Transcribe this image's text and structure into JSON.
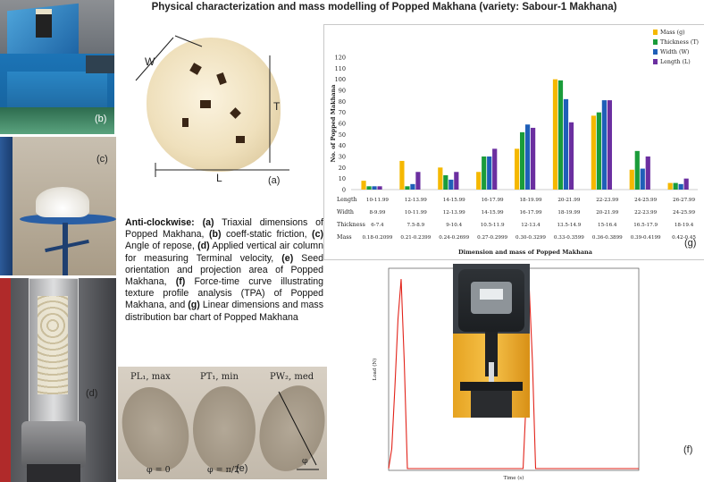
{
  "figure": {
    "title": "Physical characterization and mass modelling of Popped Makhana (variety: Sabour-1 Makhana)",
    "panel_labels": {
      "a": "(a)",
      "b": "(b)",
      "c": "(c)",
      "d": "(d)",
      "e": "(e)",
      "f": "(f)",
      "g": "(g)"
    },
    "panel_a_dims": {
      "w": "W",
      "t": "T",
      "l": "L"
    },
    "panel_e_labels": {
      "pl": "PL₁, max",
      "pt": "PT₁, min",
      "pw": "PW₂, med",
      "phi0": "φ = 0",
      "phi_half": "φ = π/2",
      "phi": "φ"
    },
    "caption": {
      "lead": "Anti-clockwise:",
      "parts": [
        {
          "tag": "(a)",
          "text": " Triaxial dimensions of Popped Makhana, "
        },
        {
          "tag": "(b)",
          "text": " coeff-static friction, "
        },
        {
          "tag": "(c)",
          "text": " Angle of repose, "
        },
        {
          "tag": "(d)",
          "text": " Applied vertical air column for measuring Terminal velocity, "
        },
        {
          "tag": "(e)",
          "text": " Seed orientation and projection area of Popped Makhana, "
        },
        {
          "tag": "(f)",
          "text": " Force-time curve illustrating texture profile analysis (TPA) of Popped Makhana, and "
        },
        {
          "tag": "(g)",
          "text": " Linear dimensions and mass distribution bar chart of Popped Makhana"
        }
      ]
    }
  },
  "chart_data": [
    {
      "type": "bar",
      "ylabel": "No. of Popped Makhana",
      "xlabel": "Dimension and mass of Popped Makhana",
      "ylim": [
        0,
        120
      ],
      "yticks": [
        0,
        10,
        20,
        30,
        40,
        50,
        60,
        70,
        80,
        90,
        100,
        110,
        120
      ],
      "legend_position": "top-right",
      "colors": {
        "mass": "#f5b800",
        "thickness": "#1a9c3a",
        "width": "#1f5fb8",
        "length": "#6b2fa0"
      },
      "series": [
        {
          "name": "Mass (g)",
          "key": "mass",
          "values": [
            8,
            26,
            20,
            16,
            37,
            100,
            67,
            18,
            6
          ]
        },
        {
          "name": "Thickness (T)",
          "key": "thickness",
          "values": [
            3,
            3,
            13,
            30,
            52,
            99,
            70,
            35,
            6
          ]
        },
        {
          "name": "Width (W)",
          "key": "width",
          "values": [
            3,
            5,
            9,
            30,
            59,
            82,
            81,
            19,
            5
          ]
        },
        {
          "name": "Length (L)",
          "key": "length",
          "values": [
            3,
            16,
            16,
            37,
            56,
            61,
            81,
            30,
            10
          ]
        }
      ],
      "rows": [
        {
          "label": "Length",
          "values": [
            "10-11.99",
            "12-13.99",
            "14-15.99",
            "16-17.99",
            "18-19.99",
            "20-21.99",
            "22-23.99",
            "24-25.99",
            "26-27.99"
          ]
        },
        {
          "label": "Width",
          "values": [
            "8-9.99",
            "10-11.99",
            "12-13.99",
            "14-15.99",
            "16-17.99",
            "18-19.99",
            "20-21.99",
            "22-23.99",
            "24-25.99"
          ]
        },
        {
          "label": "Thickness",
          "values": [
            "6-7.4",
            "7.5-8.9",
            "9-10.4",
            "10.5-11.9",
            "12-13.4",
            "13.5-14.9",
            "15-16.4",
            "16.5-17.9",
            "18-19.4"
          ]
        },
        {
          "label": "Mass",
          "values": [
            "0.18-0.2099",
            "0.21-0.2399",
            "0.24-0.2699",
            "0.27-0.2999",
            "0.30-0.3299",
            "0.33-0.3599",
            "0.36-0.3899",
            "0.39-0.4199",
            "0.42-0.45"
          ]
        }
      ]
    },
    {
      "type": "line",
      "xlabel": "Time (s)",
      "ylabel": "Load (N)",
      "color": "#e2231a",
      "x": [
        0,
        1,
        2,
        3,
        4,
        5,
        6,
        43,
        44,
        45,
        46,
        47,
        80
      ],
      "y": [
        5,
        60,
        230,
        420,
        530,
        300,
        5,
        5,
        200,
        500,
        300,
        5,
        5
      ]
    }
  ]
}
